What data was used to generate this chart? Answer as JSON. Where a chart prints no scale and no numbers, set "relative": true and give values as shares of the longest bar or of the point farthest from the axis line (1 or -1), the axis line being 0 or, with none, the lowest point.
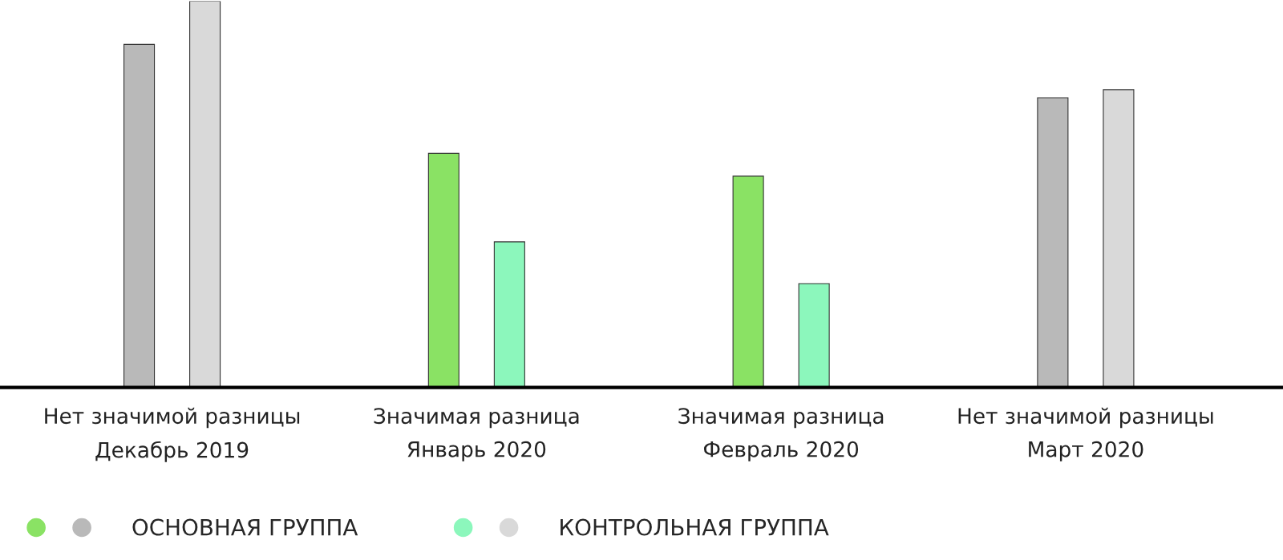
{
  "chart_data": {
    "type": "bar",
    "relative": true,
    "categories": [
      "Нет значимой разницы\nДекабрь 2019",
      "Значимая разница\nЯнварь 2020",
      "Значимая разница\nФевраль 2020",
      "Нет значимой разницы\nМарт 2020"
    ],
    "series": [
      {
        "name": "ОСНОВНАЯ ГРУППА",
        "colors": [
          "#b9b9b9",
          "#8ae264",
          "#8ae264",
          "#b9b9b9"
        ],
        "values": [
          0.888,
          0.606,
          0.547,
          0.75
        ]
      },
      {
        "name": "КОНТРОЛЬНАЯ ГРУППА",
        "colors": [
          "#d9d9d9",
          "#8cf7bc",
          "#8cf7bc",
          "#d9d9d9"
        ],
        "values": [
          1,
          0.377,
          0.269,
          0.771
        ]
      }
    ],
    "legend": "bottom left",
    "grid": false
  }
}
